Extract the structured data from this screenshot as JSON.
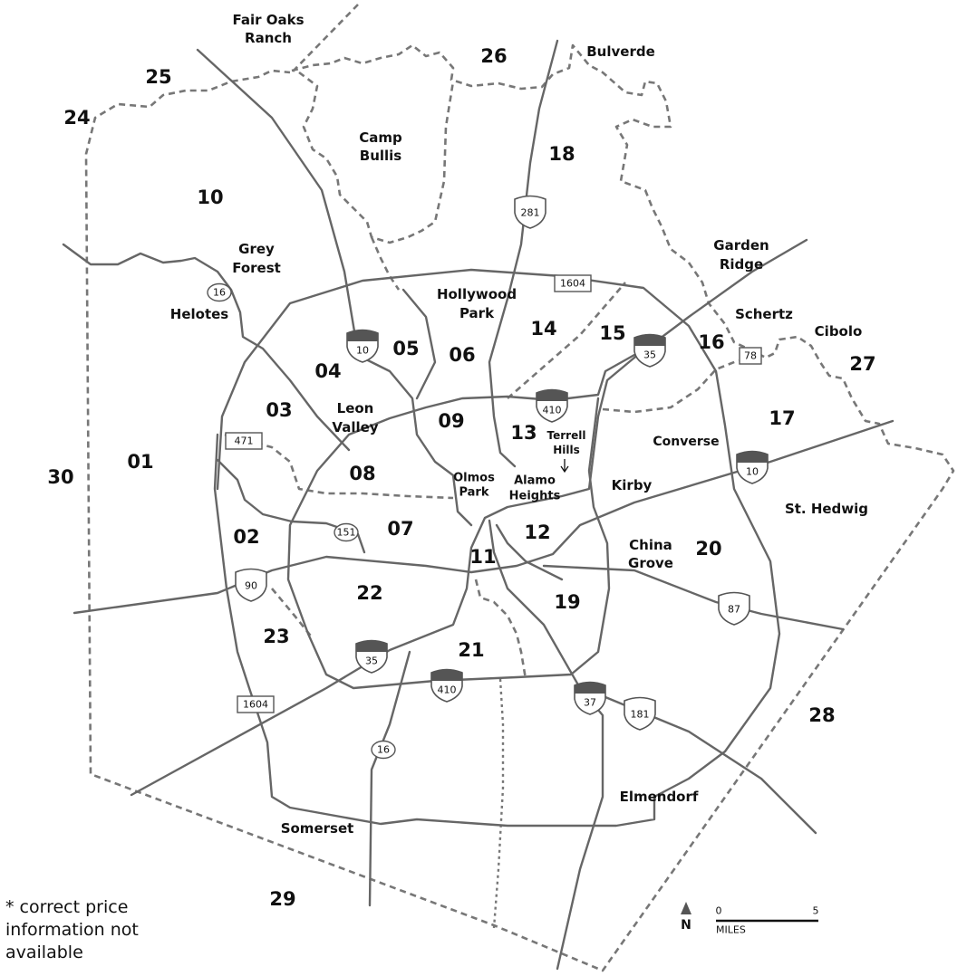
{
  "zones": [
    "25",
    "24",
    "26",
    "18",
    "10",
    "14",
    "15",
    "16",
    "27",
    "05",
    "06",
    "04",
    "03",
    "09",
    "13",
    "17",
    "01",
    "30",
    "08",
    "07",
    "12",
    "20",
    "02",
    "11",
    "22",
    "19",
    "23",
    "21",
    "28",
    "29"
  ],
  "places": [
    {
      "lines": [
        "Fair Oaks",
        "Ranch"
      ]
    },
    {
      "lines": [
        "Bulverde"
      ]
    },
    {
      "lines": [
        "Camp",
        "Bullis"
      ]
    },
    {
      "lines": [
        "Grey",
        "Forest"
      ]
    },
    {
      "lines": [
        "Garden",
        "Ridge"
      ]
    },
    {
      "lines": [
        "Hollywood",
        "Park"
      ]
    },
    {
      "lines": [
        "Helotes"
      ]
    },
    {
      "lines": [
        "Schertz"
      ]
    },
    {
      "lines": [
        "Cibolo"
      ]
    },
    {
      "lines": [
        "Leon",
        "Valley"
      ]
    },
    {
      "lines": [
        "Converse"
      ]
    },
    {
      "lines": [
        "Terrell",
        "Hills"
      ]
    },
    {
      "lines": [
        "Olmos",
        "Park"
      ]
    },
    {
      "lines": [
        "Alamo",
        "Heights"
      ]
    },
    {
      "lines": [
        "Kirby"
      ]
    },
    {
      "lines": [
        "St. Hedwig"
      ]
    },
    {
      "lines": [
        "China",
        "Grove"
      ]
    },
    {
      "lines": [
        "Elmendorf"
      ]
    },
    {
      "lines": [
        "Somerset"
      ]
    }
  ],
  "highways": [
    "281",
    "1604",
    "16",
    "10",
    "35",
    "78",
    "410",
    "471",
    "10",
    "151",
    "90",
    "87",
    "35",
    "410",
    "37",
    "181",
    "1604",
    "16"
  ],
  "note": [
    "* correct price",
    "information not",
    "available"
  ],
  "north": "N",
  "scale": {
    "start": "0",
    "end": "5",
    "unit": "MILES"
  }
}
